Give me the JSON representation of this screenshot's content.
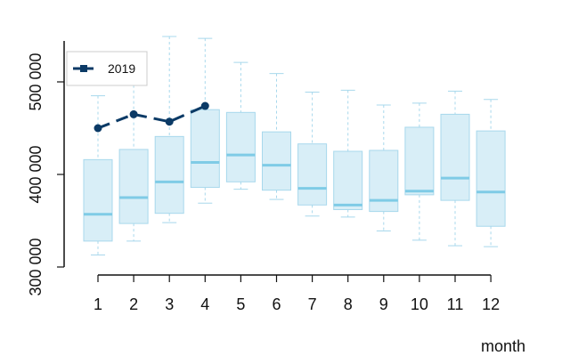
{
  "chart_data": {
    "type": "boxplot",
    "xlabel": "month",
    "ylabel": "",
    "categories": [
      "1",
      "2",
      "3",
      "4",
      "5",
      "6",
      "7",
      "8",
      "9",
      "10",
      "11",
      "12"
    ],
    "ylim": [
      300000,
      540000
    ],
    "yticks": [
      300000,
      400000,
      500000
    ],
    "ytick_labels": [
      "300 000",
      "400 000",
      "500 000"
    ],
    "grid": false,
    "box_color": "#a8d8ec",
    "box_fill": "#d8eef7",
    "median_color": "#7fcbe6",
    "boxes": [
      {
        "month": "1",
        "min": 313000,
        "q1": 328000,
        "median": 357000,
        "q3": 416000,
        "max": 485000
      },
      {
        "month": "2",
        "min": 328000,
        "q1": 347000,
        "median": 375000,
        "q3": 427000,
        "max": 508000
      },
      {
        "month": "3",
        "min": 348000,
        "q1": 358000,
        "median": 392000,
        "q3": 441000,
        "max": 549000
      },
      {
        "month": "4",
        "min": 369000,
        "q1": 386000,
        "median": 413000,
        "q3": 470000,
        "max": 547000
      },
      {
        "month": "5",
        "min": 384000,
        "q1": 392000,
        "median": 421000,
        "q3": 467000,
        "max": 521000
      },
      {
        "month": "6",
        "min": 373000,
        "q1": 383000,
        "median": 410000,
        "q3": 446000,
        "max": 509000
      },
      {
        "month": "7",
        "min": 355000,
        "q1": 367000,
        "median": 385000,
        "q3": 433000,
        "max": 489000
      },
      {
        "month": "8",
        "min": 354000,
        "q1": 362000,
        "median": 367000,
        "q3": 425000,
        "max": 491000
      },
      {
        "month": "9",
        "min": 339000,
        "q1": 360000,
        "median": 372000,
        "q3": 426000,
        "max": 475000
      },
      {
        "month": "10",
        "min": 329000,
        "q1": 378000,
        "median": 382000,
        "q3": 451000,
        "max": 477000
      },
      {
        "month": "11",
        "min": 323000,
        "q1": 372000,
        "median": 396000,
        "q3": 465000,
        "max": 490000
      },
      {
        "month": "12",
        "min": 322000,
        "q1": 344000,
        "median": 381000,
        "q3": 447000,
        "max": 481000
      }
    ],
    "series": [
      {
        "name": "2019",
        "color": "#0b3a66",
        "x": [
          "1",
          "2",
          "3",
          "4"
        ],
        "values": [
          450000,
          465000,
          457000,
          474000
        ]
      }
    ],
    "legend": {
      "position": "top-left",
      "entries": [
        "2019"
      ]
    }
  }
}
